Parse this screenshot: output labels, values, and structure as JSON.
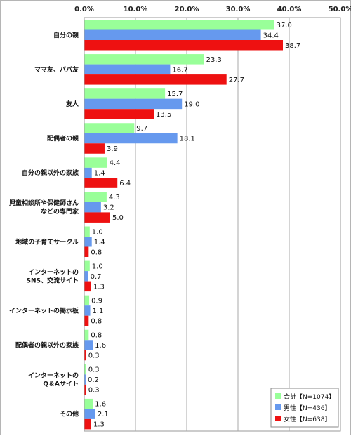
{
  "chart_data": {
    "type": "bar",
    "orientation": "horizontal",
    "title": "",
    "xlabel": "",
    "ylabel": "",
    "xlim": [
      0,
      50
    ],
    "x_ticks": [
      "0.0%",
      "10.0%",
      "20.0%",
      "30.0%",
      "40.0%",
      "50.0%"
    ],
    "x_axis_position": "top",
    "grid": true,
    "legend_position": "bottom-right",
    "categories": [
      [
        "自分の親"
      ],
      [
        "ママ友、パパ友"
      ],
      [
        "友人"
      ],
      [
        "配偶者の親"
      ],
      [
        "自分の親以外の家族"
      ],
      [
        "児童相談所や保健師さん",
        "などの専門家"
      ],
      [
        "地域の子育てサークル"
      ],
      [
        "インターネットの",
        "SNS、交流サイト"
      ],
      [
        "インターネットの掲示板"
      ],
      [
        "配偶者の親以外の家族"
      ],
      [
        "インターネットの",
        "Q＆Aサイト"
      ],
      [
        "その他"
      ]
    ],
    "series": [
      {
        "name": "合計【N=1074】",
        "color": "#99ff99",
        "values": [
          37.0,
          23.3,
          15.7,
          9.7,
          4.4,
          4.3,
          1.0,
          1.0,
          0.9,
          0.8,
          0.3,
          1.6
        ]
      },
      {
        "name": "男性【N=436】",
        "color": "#6699ee",
        "values": [
          34.4,
          16.7,
          19.0,
          18.1,
          1.4,
          3.2,
          1.4,
          0.7,
          1.1,
          1.6,
          0.2,
          2.1
        ]
      },
      {
        "name": "女性【N=638】",
        "color": "#ee1111",
        "values": [
          38.7,
          27.7,
          13.5,
          3.9,
          6.4,
          5.0,
          0.8,
          1.3,
          0.8,
          0.3,
          0.3,
          1.3
        ]
      }
    ]
  }
}
